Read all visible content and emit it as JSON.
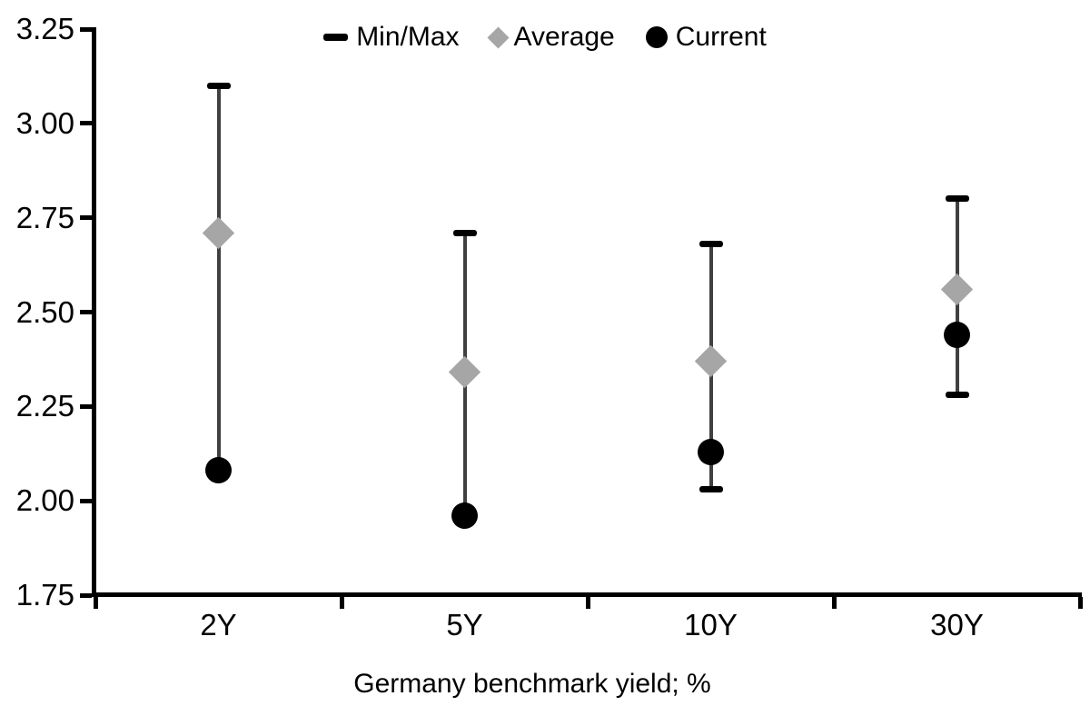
{
  "chart_data": {
    "type": "scatter",
    "title": "",
    "xlabel": "Germany benchmark yield; %",
    "ylabel": "",
    "ylim": [
      1.75,
      3.25
    ],
    "y_tick_step": 0.25,
    "y_ticks": [
      "3.25",
      "3.00",
      "2.75",
      "2.50",
      "2.25",
      "2.00",
      "1.75"
    ],
    "categories": [
      "2Y",
      "5Y",
      "10Y",
      "30Y"
    ],
    "grid": "off",
    "legend_position": "top-center",
    "legend": [
      {
        "label": "Min/Max",
        "marker": "dash"
      },
      {
        "label": "Average",
        "marker": "diamond"
      },
      {
        "label": "Current",
        "marker": "circle"
      }
    ],
    "series": [
      {
        "name": "Max",
        "values": [
          3.1,
          2.71,
          2.68,
          2.8
        ]
      },
      {
        "name": "Min",
        "values": [
          2.08,
          1.96,
          2.03,
          2.28
        ]
      },
      {
        "name": "Average",
        "values": [
          2.71,
          2.34,
          2.37,
          2.56
        ]
      },
      {
        "name": "Current",
        "values": [
          2.08,
          1.96,
          2.13,
          2.44
        ]
      }
    ],
    "min_cap_visible": [
      false,
      false,
      true,
      true
    ]
  },
  "colors": {
    "marker_black": "#000000",
    "average_gray": "#a6a6a6",
    "range_line": "#404040",
    "background": "#ffffff"
  }
}
